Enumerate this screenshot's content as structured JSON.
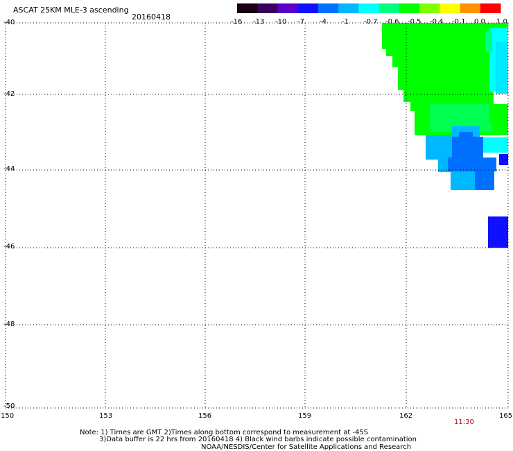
{
  "header": {
    "title": "ASCAT 25KM MLE-3 ascending",
    "date": "20160418"
  },
  "colorbar": {
    "labels": [
      "-16",
      "-13",
      "-10",
      "-7",
      "-4",
      "-1",
      "-0.7",
      "-0.6",
      "-0.5",
      "-0.4",
      "-0.1",
      "0.0",
      "1.0"
    ],
    "colors": [
      "#1a0010",
      "#3a0060",
      "#5a00c8",
      "#1010ff",
      "#0070ff",
      "#00b8ff",
      "#00ffff",
      "#00ff80",
      "#00ff00",
      "#80ff00",
      "#ffff00",
      "#ff9000",
      "#ff0000"
    ]
  },
  "map": {
    "lat_labels": [
      "-40",
      "-42",
      "-44",
      "-46",
      "-48",
      "-50"
    ],
    "lon_labels": [
      "150",
      "153",
      "156",
      "159",
      "162",
      "165"
    ],
    "time_label": "11:30"
  },
  "footer": {
    "note_line1": "Note: 1) Times are GMT 2)Times along bottom correspond to measurement at -45S",
    "note_line2": "3)Data buffer is 22 hrs from 20160418 4) Black wind barbs indicate possible contamination",
    "note_line3": "NOAA/NESDIS/Center for Satellite Applications and Research"
  }
}
